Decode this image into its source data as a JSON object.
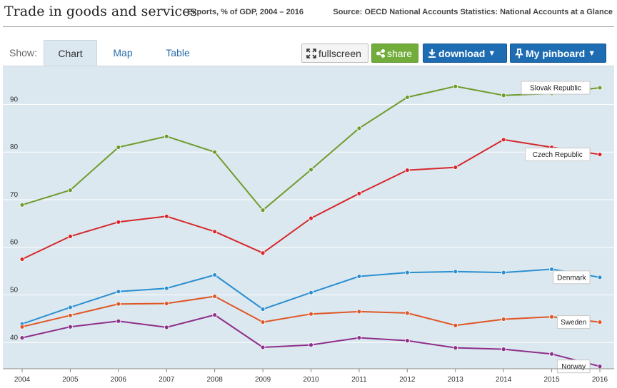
{
  "header": {
    "title": "Trade in goods and services",
    "subtitle": "Exports, % of GDP, 2004 – 2016",
    "source": "Source: OECD National Accounts Statistics: National Accounts at a Glance"
  },
  "toolbar": {
    "show_label": "Show:",
    "tabs": [
      {
        "label": "Chart",
        "active": true
      },
      {
        "label": "Map",
        "active": false
      },
      {
        "label": "Table",
        "active": false
      }
    ],
    "fullscreen_label": "fullscreen",
    "share_label": "share",
    "download_label": "download",
    "pinboard_label": "My pinboard",
    "caret": "▼"
  },
  "colors": {
    "plot_bg": "#dce8ef",
    "gridline": "#ffffff",
    "slovak": "#6f9b2d",
    "czech": "#d5282d",
    "denmark": "#2b8fd2",
    "sweden": "#df5626",
    "norway": "#8e2f8a"
  },
  "chart_data": {
    "type": "line",
    "title": "",
    "xlabel": "",
    "ylabel": "",
    "x": [
      "2004",
      "2005",
      "2006",
      "2007",
      "2008",
      "2009",
      "2010",
      "2011",
      "2012",
      "2013",
      "2014",
      "2015",
      "2016"
    ],
    "yticks": [
      "40",
      "50",
      "60",
      "70",
      "80",
      "90"
    ],
    "ylim": [
      34.5,
      98
    ],
    "grid": true,
    "legend": "labels at line ends",
    "series": [
      {
        "name": "Slovak Republic",
        "color": "#6f9b2d",
        "values": [
          68.9,
          72.0,
          81.0,
          83.3,
          80.0,
          67.8,
          76.3,
          85.0,
          91.5,
          93.8,
          91.9,
          92.3,
          93.5
        ]
      },
      {
        "name": "Czech Republic",
        "color": "#d5282d",
        "values": [
          57.5,
          62.3,
          65.3,
          66.5,
          63.3,
          58.8,
          66.1,
          71.3,
          76.2,
          76.8,
          82.6,
          81.0,
          79.5
        ]
      },
      {
        "name": "Denmark",
        "color": "#2b8fd2",
        "values": [
          43.9,
          47.4,
          50.7,
          51.4,
          54.2,
          47.0,
          50.5,
          53.9,
          54.7,
          54.9,
          54.7,
          55.4,
          53.7
        ]
      },
      {
        "name": "Sweden",
        "color": "#df5626",
        "values": [
          43.3,
          45.7,
          48.1,
          48.2,
          49.7,
          44.3,
          46.0,
          46.5,
          46.2,
          43.6,
          44.9,
          45.4,
          44.3
        ]
      },
      {
        "name": "Norway",
        "color": "#8e2f8a",
        "values": [
          41.0,
          43.3,
          44.5,
          43.2,
          45.8,
          39.0,
          39.5,
          41.0,
          40.4,
          38.9,
          38.6,
          37.6,
          35.0
        ]
      }
    ]
  }
}
